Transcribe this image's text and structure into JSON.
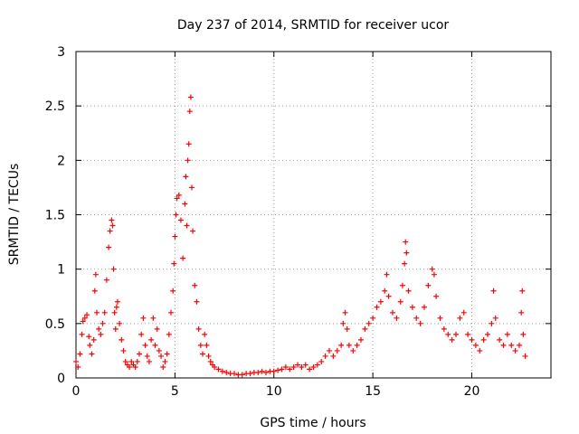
{
  "chart_data": {
    "type": "scatter",
    "title": "Day 237 of 2014, SRMTID for receiver ucor",
    "xlabel": "GPS time / hours",
    "ylabel": "SRMTID / TECUs",
    "xlim": [
      0,
      24
    ],
    "ylim": [
      0,
      3
    ],
    "x_ticks": [
      0,
      5,
      10,
      15,
      20
    ],
    "y_ticks": [
      0,
      0.5,
      1,
      1.5,
      2,
      2.5,
      3
    ],
    "x_tick_labels": [
      "0",
      "5",
      "10",
      "15",
      "20"
    ],
    "y_tick_labels": [
      "0",
      "0.5",
      "1",
      "1.5",
      "2",
      "2.5",
      "3"
    ],
    "grid": true,
    "marker": "+",
    "series": [
      {
        "name": "SRMTID",
        "color": "#ff0000",
        "points": [
          [
            0.0,
            0.15
          ],
          [
            0.1,
            0.1
          ],
          [
            0.2,
            0.22
          ],
          [
            0.3,
            0.4
          ],
          [
            0.35,
            0.52
          ],
          [
            0.45,
            0.55
          ],
          [
            0.55,
            0.58
          ],
          [
            0.65,
            0.38
          ],
          [
            0.7,
            0.3
          ],
          [
            0.8,
            0.22
          ],
          [
            0.9,
            0.35
          ],
          [
            0.95,
            0.8
          ],
          [
            1.0,
            0.95
          ],
          [
            1.05,
            0.6
          ],
          [
            1.15,
            0.45
          ],
          [
            1.25,
            0.4
          ],
          [
            1.35,
            0.5
          ],
          [
            1.45,
            0.6
          ],
          [
            1.55,
            0.9
          ],
          [
            1.65,
            1.2
          ],
          [
            1.72,
            1.35
          ],
          [
            1.8,
            1.45
          ],
          [
            1.85,
            1.4
          ],
          [
            1.9,
            1.0
          ],
          [
            1.95,
            0.6
          ],
          [
            2.0,
            0.45
          ],
          [
            2.05,
            0.65
          ],
          [
            2.1,
            0.7
          ],
          [
            2.2,
            0.5
          ],
          [
            2.3,
            0.35
          ],
          [
            2.4,
            0.25
          ],
          [
            2.5,
            0.15
          ],
          [
            2.6,
            0.12
          ],
          [
            2.7,
            0.1
          ],
          [
            2.8,
            0.15
          ],
          [
            2.9,
            0.12
          ],
          [
            3.0,
            0.1
          ],
          [
            3.1,
            0.15
          ],
          [
            3.2,
            0.22
          ],
          [
            3.3,
            0.4
          ],
          [
            3.4,
            0.55
          ],
          [
            3.5,
            0.3
          ],
          [
            3.6,
            0.2
          ],
          [
            3.7,
            0.15
          ],
          [
            3.8,
            0.35
          ],
          [
            3.9,
            0.55
          ],
          [
            4.0,
            0.3
          ],
          [
            4.1,
            0.45
          ],
          [
            4.2,
            0.25
          ],
          [
            4.3,
            0.2
          ],
          [
            4.4,
            0.1
          ],
          [
            4.5,
            0.15
          ],
          [
            4.6,
            0.22
          ],
          [
            4.7,
            0.4
          ],
          [
            4.8,
            0.6
          ],
          [
            4.9,
            0.8
          ],
          [
            4.95,
            1.05
          ],
          [
            5.0,
            1.3
          ],
          [
            5.05,
            1.5
          ],
          [
            5.1,
            1.65
          ],
          [
            5.2,
            1.68
          ],
          [
            5.3,
            1.45
          ],
          [
            5.4,
            1.1
          ],
          [
            5.5,
            1.6
          ],
          [
            5.55,
            1.85
          ],
          [
            5.6,
            1.4
          ],
          [
            5.65,
            2.0
          ],
          [
            5.7,
            2.15
          ],
          [
            5.75,
            2.45
          ],
          [
            5.8,
            2.58
          ],
          [
            5.85,
            1.75
          ],
          [
            5.9,
            1.35
          ],
          [
            6.0,
            0.85
          ],
          [
            6.1,
            0.7
          ],
          [
            6.2,
            0.45
          ],
          [
            6.3,
            0.3
          ],
          [
            6.4,
            0.22
          ],
          [
            6.5,
            0.4
          ],
          [
            6.6,
            0.3
          ],
          [
            6.7,
            0.2
          ],
          [
            6.8,
            0.15
          ],
          [
            6.9,
            0.12
          ],
          [
            7.0,
            0.1
          ],
          [
            7.2,
            0.08
          ],
          [
            7.4,
            0.06
          ],
          [
            7.6,
            0.05
          ],
          [
            7.8,
            0.04
          ],
          [
            8.0,
            0.04
          ],
          [
            8.2,
            0.03
          ],
          [
            8.4,
            0.03
          ],
          [
            8.6,
            0.04
          ],
          [
            8.8,
            0.04
          ],
          [
            9.0,
            0.05
          ],
          [
            9.2,
            0.05
          ],
          [
            9.4,
            0.06
          ],
          [
            9.6,
            0.05
          ],
          [
            9.8,
            0.06
          ],
          [
            10.0,
            0.06
          ],
          [
            10.2,
            0.07
          ],
          [
            10.4,
            0.08
          ],
          [
            10.6,
            0.1
          ],
          [
            10.8,
            0.08
          ],
          [
            11.0,
            0.1
          ],
          [
            11.2,
            0.12
          ],
          [
            11.4,
            0.1
          ],
          [
            11.6,
            0.12
          ],
          [
            11.8,
            0.08
          ],
          [
            12.0,
            0.1
          ],
          [
            12.2,
            0.12
          ],
          [
            12.4,
            0.15
          ],
          [
            12.6,
            0.2
          ],
          [
            12.8,
            0.25
          ],
          [
            13.0,
            0.2
          ],
          [
            13.2,
            0.25
          ],
          [
            13.4,
            0.3
          ],
          [
            13.5,
            0.5
          ],
          [
            13.6,
            0.6
          ],
          [
            13.7,
            0.45
          ],
          [
            13.8,
            0.3
          ],
          [
            14.0,
            0.25
          ],
          [
            14.2,
            0.3
          ],
          [
            14.4,
            0.35
          ],
          [
            14.6,
            0.45
          ],
          [
            14.8,
            0.5
          ],
          [
            15.0,
            0.55
          ],
          [
            15.2,
            0.65
          ],
          [
            15.4,
            0.7
          ],
          [
            15.6,
            0.8
          ],
          [
            15.7,
            0.95
          ],
          [
            15.8,
            0.75
          ],
          [
            16.0,
            0.6
          ],
          [
            16.2,
            0.55
          ],
          [
            16.4,
            0.7
          ],
          [
            16.5,
            0.85
          ],
          [
            16.6,
            1.05
          ],
          [
            16.65,
            1.25
          ],
          [
            16.7,
            1.15
          ],
          [
            16.8,
            0.8
          ],
          [
            17.0,
            0.65
          ],
          [
            17.2,
            0.55
          ],
          [
            17.4,
            0.5
          ],
          [
            17.6,
            0.65
          ],
          [
            17.8,
            0.85
          ],
          [
            18.0,
            1.0
          ],
          [
            18.1,
            0.95
          ],
          [
            18.2,
            0.75
          ],
          [
            18.4,
            0.55
          ],
          [
            18.6,
            0.45
          ],
          [
            18.8,
            0.4
          ],
          [
            19.0,
            0.35
          ],
          [
            19.2,
            0.4
          ],
          [
            19.4,
            0.55
          ],
          [
            19.6,
            0.6
          ],
          [
            19.8,
            0.4
          ],
          [
            20.0,
            0.35
          ],
          [
            20.2,
            0.3
          ],
          [
            20.4,
            0.25
          ],
          [
            20.6,
            0.35
          ],
          [
            20.8,
            0.4
          ],
          [
            21.0,
            0.5
          ],
          [
            21.1,
            0.8
          ],
          [
            21.2,
            0.55
          ],
          [
            21.4,
            0.35
          ],
          [
            21.6,
            0.3
          ],
          [
            21.8,
            0.4
          ],
          [
            22.0,
            0.3
          ],
          [
            22.2,
            0.25
          ],
          [
            22.4,
            0.3
          ],
          [
            22.5,
            0.6
          ],
          [
            22.55,
            0.8
          ],
          [
            22.6,
            0.4
          ],
          [
            22.7,
            0.2
          ]
        ]
      }
    ]
  }
}
